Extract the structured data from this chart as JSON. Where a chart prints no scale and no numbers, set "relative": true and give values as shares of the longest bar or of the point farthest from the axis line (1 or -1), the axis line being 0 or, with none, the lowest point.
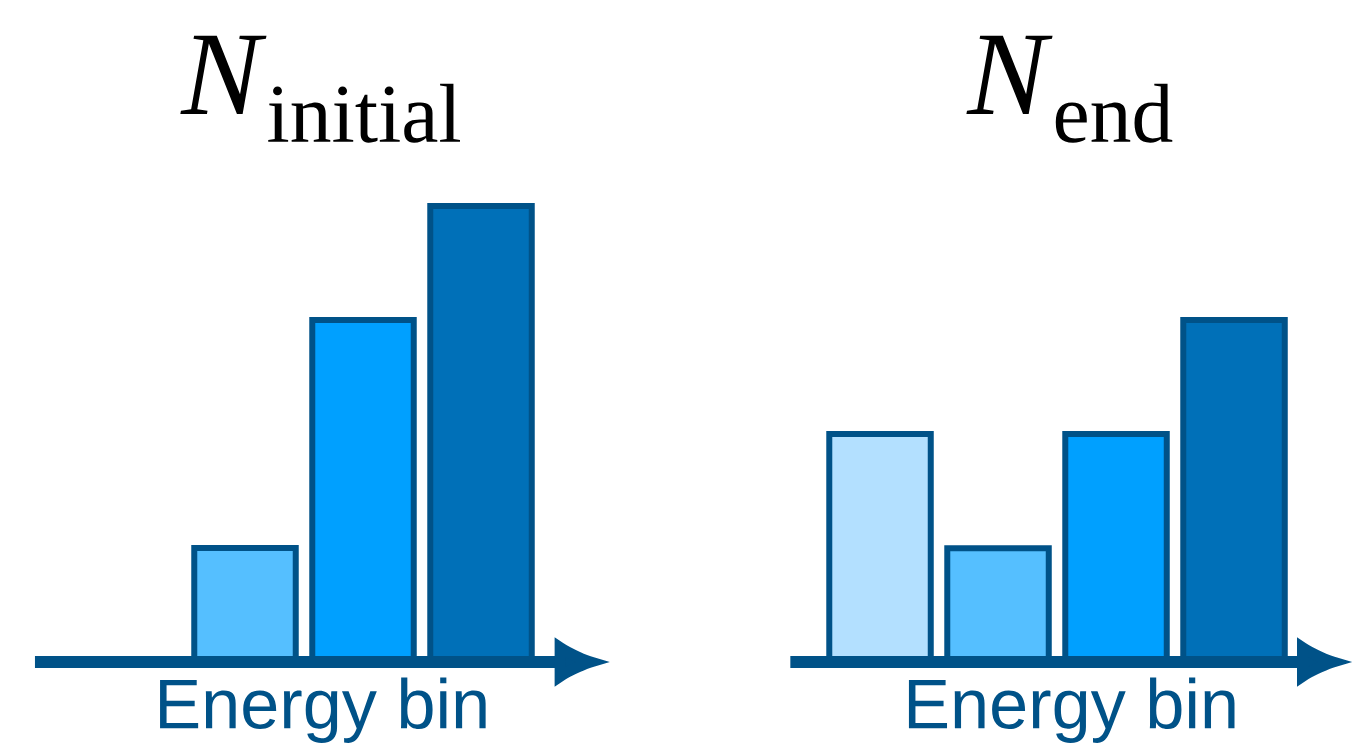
{
  "chart_data": [
    {
      "type": "bar",
      "relative": true,
      "title": "*N*$_{initial}$",
      "xlabel": "Energy bin",
      "categories": [
        null,
        null,
        null
      ],
      "colors": [
        "#55bfff",
        "#00a0ff",
        "#0070b8"
      ],
      "values": [
        0.25,
        0.75,
        1
      ]
    },
    {
      "type": "bar",
      "relative": true,
      "title": "*N*$_{end}$",
      "xlabel": "Energy bin",
      "categories": [
        null,
        null,
        null,
        null
      ],
      "colors": [
        "#b3e0ff",
        "#55bfff",
        "#00a0ff",
        "#0070b8"
      ],
      "values": [
        0.667,
        0.333,
        0.667,
        1
      ]
    }
  ]
}
